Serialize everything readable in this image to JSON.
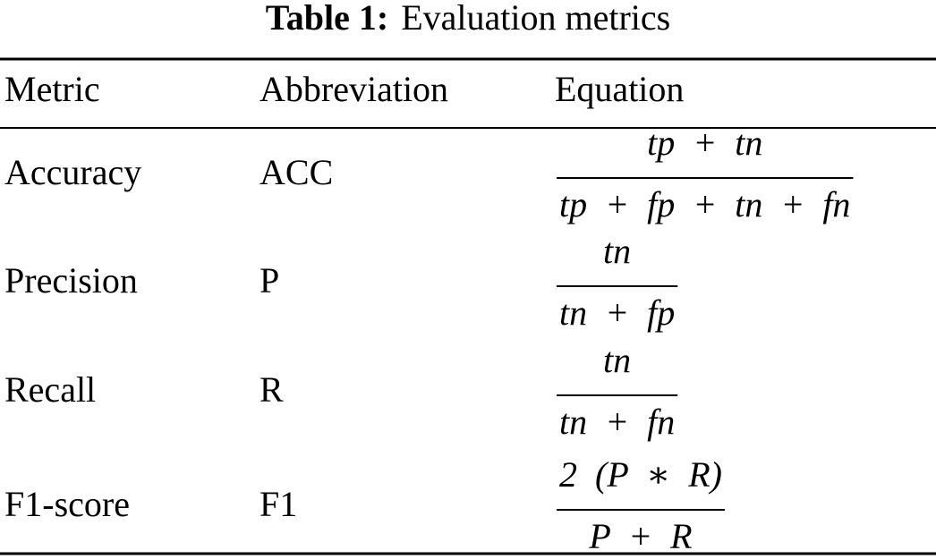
{
  "caption": {
    "label": "Table 1:",
    "text": "Evaluation metrics"
  },
  "table": {
    "header": [
      "Metric",
      "Abbreviation",
      "Equation"
    ],
    "rows": [
      {
        "metric": "Accuracy",
        "abbreviation": "ACC",
        "equation": {
          "numerator": "tp + tn",
          "denominator": "tp + fp + tn + fn"
        }
      },
      {
        "metric": "Precision",
        "abbreviation": "P",
        "equation": {
          "numerator": "tn",
          "denominator": "tn + fp"
        }
      },
      {
        "metric": "Recall",
        "abbreviation": "R",
        "equation": {
          "numerator": "tn",
          "denominator": "tn + fn"
        }
      },
      {
        "metric": "F1-score",
        "abbreviation": "F1",
        "equation": {
          "numerator": "2 (P ∗ R)",
          "denominator": "P + R"
        }
      }
    ]
  }
}
